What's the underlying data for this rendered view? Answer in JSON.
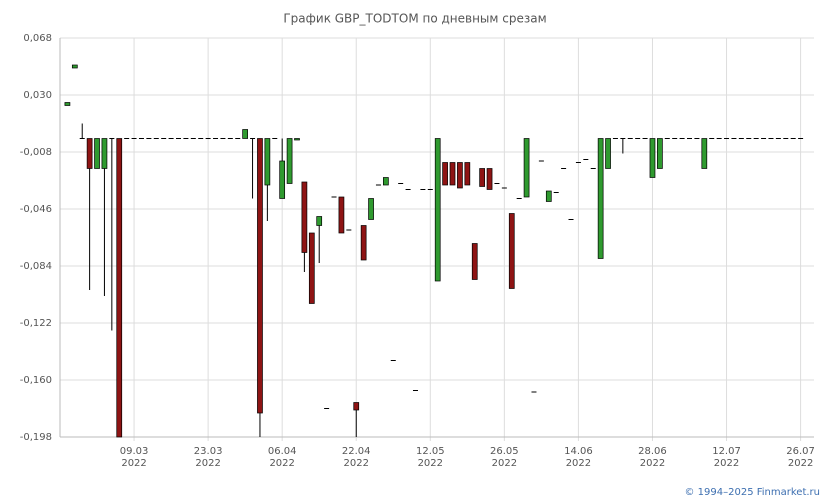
{
  "chart_data": {
    "type": "candlestick",
    "title": "График GBP_TODTOM по дневным срезам",
    "footer": "© 1994–2025 Finmarket.ru",
    "up_color": "#2f9a2f",
    "down_color": "#8e1414",
    "grid": true,
    "ylim": [
      -0.198,
      0.068
    ],
    "yticks": [
      {
        "value": 0.068,
        "label": "0,068"
      },
      {
        "value": 0.03,
        "label": "0,030"
      },
      {
        "value": -0.008,
        "label": "-0,008"
      },
      {
        "value": -0.046,
        "label": "-0,046"
      },
      {
        "value": -0.084,
        "label": "-0,084"
      },
      {
        "value": -0.122,
        "label": "-0,122"
      },
      {
        "value": -0.16,
        "label": "-0,160"
      },
      {
        "value": -0.198,
        "label": "-0,198"
      }
    ],
    "xlim": [
      0,
      101
    ],
    "xticks": [
      {
        "value": 10,
        "label": "09.03\n2022"
      },
      {
        "value": 20,
        "label": "23.03\n2022"
      },
      {
        "value": 30,
        "label": "06.04\n2022"
      },
      {
        "value": 40,
        "label": "22.04\n2022"
      },
      {
        "value": 50,
        "label": "12.05\n2022"
      },
      {
        "value": 60,
        "label": "26.05\n2022"
      },
      {
        "value": 70,
        "label": "14.06\n2022"
      },
      {
        "value": 80,
        "label": "28.06\n2022"
      },
      {
        "value": 90,
        "label": "12.07\n2022"
      },
      {
        "value": 100,
        "label": "26.07\n2022"
      }
    ],
    "x": [
      1,
      2,
      3,
      4,
      5,
      6,
      7,
      8,
      9,
      10,
      11,
      12,
      13,
      14,
      15,
      16,
      17,
      18,
      19,
      20,
      21,
      22,
      23,
      24,
      25,
      26,
      27,
      28,
      29,
      30,
      31,
      32,
      33,
      34,
      35,
      36,
      37,
      38,
      39,
      40,
      41,
      42,
      43,
      44,
      45,
      46,
      47,
      48,
      49,
      50,
      51,
      52,
      53,
      54,
      55,
      56,
      57,
      58,
      59,
      60,
      61,
      62,
      63,
      64,
      65,
      66,
      67,
      68,
      69,
      70,
      71,
      72,
      73,
      74,
      75,
      76,
      77,
      78,
      79,
      80,
      81,
      82,
      83,
      84,
      85,
      86,
      87,
      88,
      89,
      90,
      91,
      92,
      93,
      94,
      95,
      96,
      97,
      98,
      99,
      100
    ],
    "ohlc": [
      [
        0.023,
        0.025,
        0.023,
        0.025
      ],
      [
        0.048,
        0.05,
        0.048,
        0.05
      ],
      [
        0.001,
        0.011,
        0.001,
        0.001
      ],
      [
        0.001,
        0.001,
        -0.1,
        -0.019
      ],
      [
        -0.019,
        0.001,
        -0.019,
        0.001
      ],
      [
        -0.019,
        0.001,
        -0.104,
        0.001
      ],
      [
        0.001,
        0.001,
        -0.127,
        0.001
      ],
      [
        0.001,
        0.001,
        -0.198,
        -0.198
      ],
      [
        0.001,
        0.001,
        0.001,
        0.001
      ],
      [
        0.001,
        0.001,
        0.001,
        0.001
      ],
      [
        0.001,
        0.001,
        0.001,
        0.001
      ],
      [
        0.001,
        0.001,
        0.001,
        0.001
      ],
      [
        0.001,
        0.001,
        0.001,
        0.001
      ],
      [
        0.001,
        0.001,
        0.001,
        0.001
      ],
      [
        0.001,
        0.001,
        0.001,
        0.001
      ],
      [
        0.001,
        0.001,
        0.001,
        0.001
      ],
      [
        0.001,
        0.001,
        0.001,
        0.001
      ],
      [
        0.001,
        0.001,
        0.001,
        0.001
      ],
      [
        0.001,
        0.001,
        0.001,
        0.001
      ],
      [
        0.001,
        0.001,
        0.001,
        0.001
      ],
      [
        0.001,
        0.001,
        0.001,
        0.001
      ],
      [
        0.001,
        0.001,
        0.001,
        0.001
      ],
      [
        0.001,
        0.001,
        0.001,
        0.001
      ],
      [
        0.001,
        0.001,
        0.001,
        0.001
      ],
      [
        0.001,
        0.007,
        0.001,
        0.007
      ],
      [
        0.001,
        0.001,
        -0.039,
        0.001
      ],
      [
        0.001,
        0.001,
        -0.198,
        -0.182
      ],
      [
        -0.03,
        0.001,
        -0.054,
        0.001
      ],
      [
        0.001,
        0.001,
        0.001,
        0.001
      ],
      [
        -0.039,
        0.001,
        -0.039,
        -0.014
      ],
      [
        -0.029,
        0.001,
        -0.029,
        0.001
      ],
      [
        0,
        0.001,
        0,
        0.001
      ],
      [
        -0.028,
        -0.028,
        -0.088,
        -0.075
      ],
      [
        -0.062,
        -0.062,
        -0.109,
        -0.109
      ],
      [
        -0.057,
        -0.051,
        -0.082,
        -0.051
      ],
      [
        -0.179,
        -0.179,
        -0.179,
        -0.179
      ],
      [
        -0.038,
        -0.038,
        -0.038,
        -0.038
      ],
      [
        -0.038,
        -0.038,
        -0.062,
        -0.062
      ],
      [
        -0.06,
        -0.06,
        -0.06,
        -0.06
      ],
      [
        -0.175,
        -0.175,
        -0.198,
        -0.18
      ],
      [
        -0.057,
        -0.057,
        -0.08,
        -0.08
      ],
      [
        -0.053,
        -0.039,
        -0.053,
        -0.039
      ],
      [
        -0.03,
        -0.03,
        -0.03,
        -0.03
      ],
      [
        -0.03,
        -0.025,
        -0.03,
        -0.025
      ],
      [
        -0.147,
        -0.147,
        -0.147,
        -0.147
      ],
      [
        -0.029,
        -0.029,
        -0.029,
        -0.029
      ],
      [
        -0.033,
        -0.033,
        -0.033,
        -0.033
      ],
      [
        -0.167,
        -0.167,
        -0.167,
        -0.167
      ],
      [
        -0.033,
        -0.033,
        -0.033,
        -0.033
      ],
      [
        -0.033,
        -0.033,
        -0.033,
        -0.033
      ],
      [
        -0.094,
        0.001,
        -0.094,
        0.001
      ],
      [
        -0.015,
        -0.015,
        -0.03,
        -0.03
      ],
      [
        -0.015,
        -0.015,
        -0.03,
        -0.03
      ],
      [
        -0.015,
        -0.015,
        -0.032,
        -0.032
      ],
      [
        -0.015,
        -0.015,
        -0.03,
        -0.03
      ],
      [
        -0.069,
        -0.069,
        -0.093,
        -0.093
      ],
      [
        -0.019,
        -0.019,
        -0.031,
        -0.031
      ],
      [
        -0.019,
        -0.019,
        -0.033,
        -0.033
      ],
      [
        -0.029,
        -0.029,
        -0.029,
        -0.029
      ],
      [
        -0.032,
        -0.032,
        -0.032,
        -0.032
      ],
      [
        -0.049,
        -0.049,
        -0.099,
        -0.099
      ],
      [
        -0.039,
        -0.039,
        -0.039,
        -0.039
      ],
      [
        -0.038,
        0.001,
        -0.038,
        0.001
      ],
      [
        -0.168,
        -0.168,
        -0.168,
        -0.168
      ],
      [
        -0.014,
        -0.014,
        -0.014,
        -0.014
      ],
      [
        -0.041,
        -0.034,
        -0.041,
        -0.034
      ],
      [
        -0.035,
        -0.035,
        -0.035,
        -0.035
      ],
      [
        -0.019,
        -0.019,
        -0.019,
        -0.019
      ],
      [
        -0.053,
        -0.053,
        -0.053,
        -0.053
      ],
      [
        -0.015,
        -0.015,
        -0.015,
        -0.015
      ],
      [
        -0.013,
        -0.013,
        -0.013,
        -0.013
      ],
      [
        -0.019,
        -0.019,
        -0.019,
        -0.019
      ],
      [
        -0.079,
        0.001,
        -0.079,
        0.001
      ],
      [
        -0.019,
        0.001,
        -0.019,
        0.001
      ],
      [
        0.001,
        0.001,
        0.001,
        0.001
      ],
      [
        0.001,
        0.001,
        -0.009,
        0.001
      ],
      [
        0.001,
        0.001,
        0.001,
        0.001
      ],
      [
        0.001,
        0.001,
        0.001,
        0.001
      ],
      [
        0.001,
        0.001,
        0.001,
        0.001
      ],
      [
        -0.025,
        0.001,
        -0.025,
        0.001
      ],
      [
        -0.019,
        0.001,
        -0.019,
        0.001
      ],
      [
        0.001,
        0.001,
        0.001,
        0.001
      ],
      [
        0.001,
        0.001,
        0.001,
        0.001
      ],
      [
        0.001,
        0.001,
        0.001,
        0.001
      ],
      [
        0.001,
        0.001,
        0.001,
        0.001
      ],
      [
        0.001,
        0.001,
        0.001,
        0.001
      ],
      [
        -0.019,
        0.001,
        -0.019,
        0.001
      ],
      [
        0.001,
        0.001,
        0.001,
        0.001
      ],
      [
        0.001,
        0.001,
        0.001,
        0.001
      ],
      [
        0.001,
        0.001,
        0.001,
        0.001
      ],
      [
        0.001,
        0.001,
        0.001,
        0.001
      ],
      [
        0.001,
        0.001,
        0.001,
        0.001
      ],
      [
        0.001,
        0.001,
        0.001,
        0.001
      ],
      [
        0.001,
        0.001,
        0.001,
        0.001
      ],
      [
        0.001,
        0.001,
        0.001,
        0.001
      ],
      [
        0.001,
        0.001,
        0.001,
        0.001
      ],
      [
        0.001,
        0.001,
        0.001,
        0.001
      ],
      [
        0.001,
        0.001,
        0.001,
        0.001
      ],
      [
        0.001,
        0.001,
        0.001,
        0.001
      ],
      [
        0.001,
        0.001,
        0.001,
        0.001
      ]
    ]
  }
}
